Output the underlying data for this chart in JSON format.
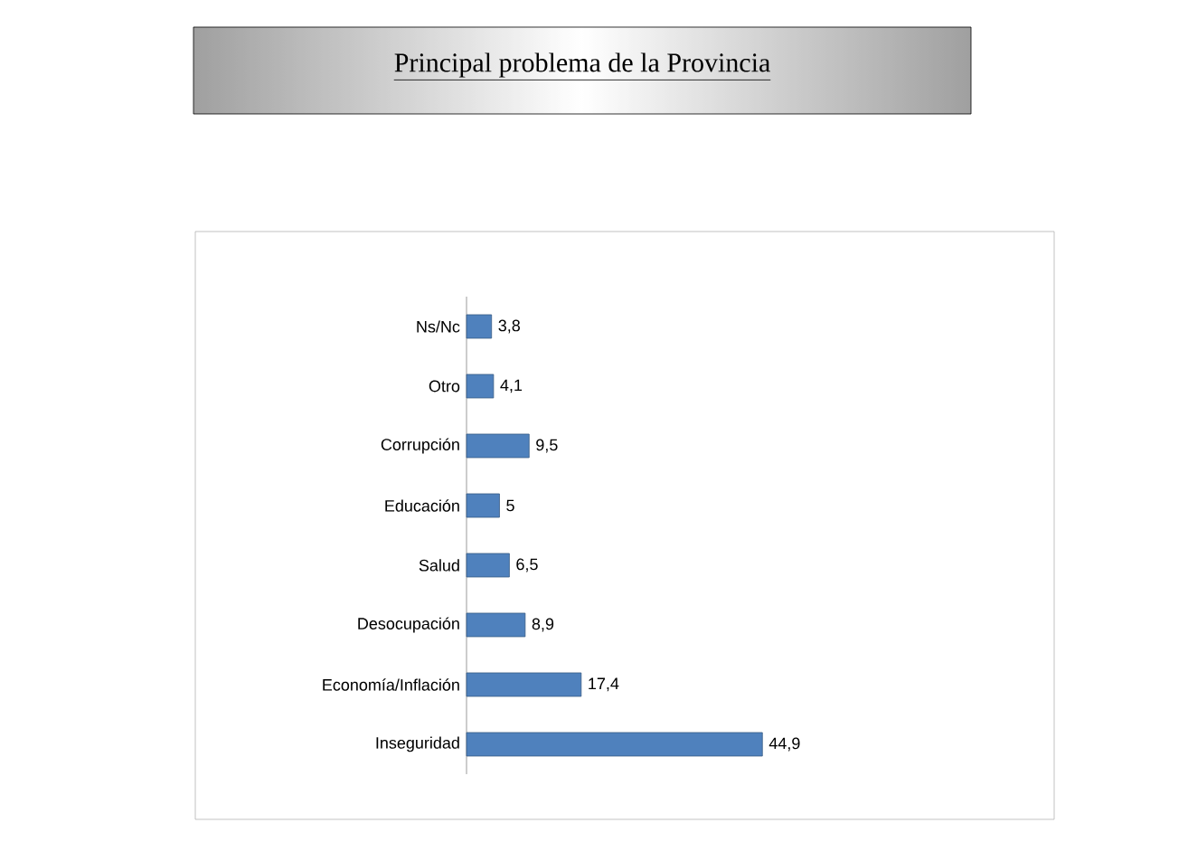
{
  "chart_data": {
    "type": "bar",
    "orientation": "horizontal",
    "title": "Principal problema de la Provincia",
    "categories": [
      "Ns/Nc",
      "Otro",
      "Corrupción",
      "Educación",
      "Salud",
      "Desocupación",
      "Economía/Inflación",
      "Inseguridad"
    ],
    "values": [
      3.8,
      4.1,
      9.5,
      5,
      6.5,
      8.9,
      17.4,
      44.9
    ],
    "value_labels": [
      "3,8",
      "4,1",
      "9,5",
      "5",
      "6,5",
      "8,9",
      "17,4",
      "44,9"
    ],
    "color": "#4f81bd"
  }
}
